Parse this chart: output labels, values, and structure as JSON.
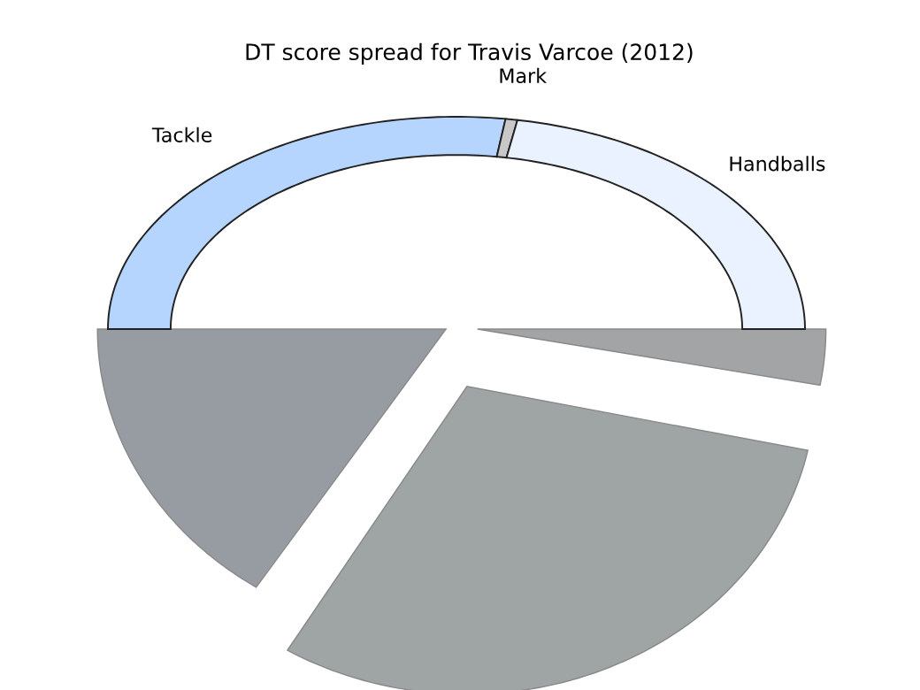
{
  "chart_data": {
    "type": "donut",
    "title": "DT score spread for Travis Varcoe (2012)",
    "categories": [
      "Tackle",
      "Mark",
      "Handballs"
    ],
    "values": [
      54.5,
      1.1,
      44.4
    ],
    "colors": [
      "#b5d5ff",
      "#c8c8c8",
      "#eaf2ff"
    ]
  }
}
